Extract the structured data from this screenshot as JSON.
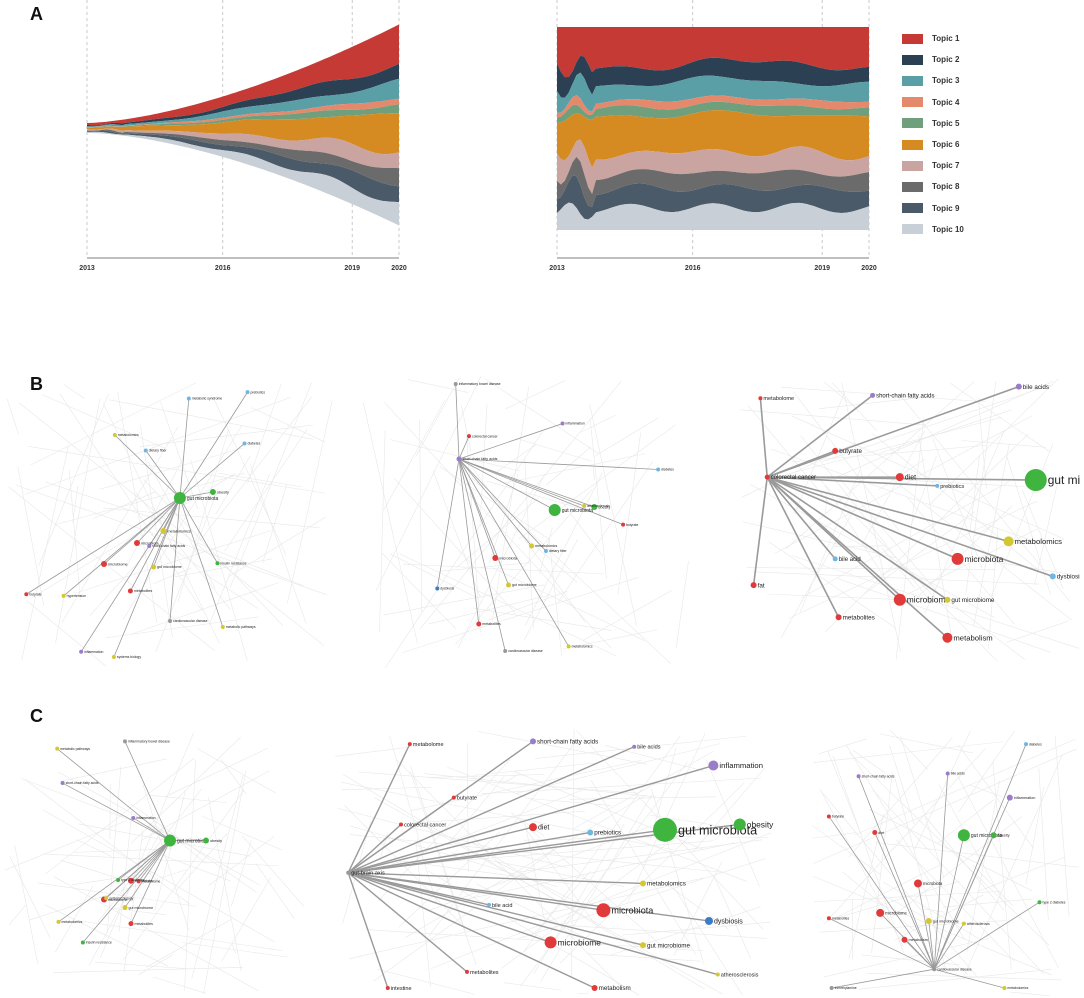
{
  "panels": {
    "a": "A",
    "b": "B",
    "c": "C"
  },
  "topics": [
    {
      "label": "Topic 1",
      "color": "#c63a35"
    },
    {
      "label": "Topic 2",
      "color": "#2b4153"
    },
    {
      "label": "Topic 3",
      "color": "#5a9fa6"
    },
    {
      "label": "Topic 4",
      "color": "#e4896b"
    },
    {
      "label": "Topic 5",
      "color": "#6f9f7c"
    },
    {
      "label": "Topic 6",
      "color": "#d68a22"
    },
    {
      "label": "Topic 7",
      "color": "#c9a4a0"
    },
    {
      "label": "Topic 8",
      "color": "#6b6b6b"
    },
    {
      "label": "Topic 9",
      "color": "#4a5a68"
    },
    {
      "label": "Topic 10",
      "color": "#c8cfd6"
    }
  ],
  "years": [
    "2013",
    "2016",
    "2019",
    "2020"
  ],
  "chart_data": [
    {
      "type": "area",
      "stacked": true,
      "offset": "silhouette",
      "x_ticks": [
        "2013",
        "2016",
        "2019",
        "2020"
      ],
      "legend_position": "right"
    },
    {
      "type": "area",
      "stacked": true,
      "normalized": true,
      "x_ticks": [
        "2013",
        "2016",
        "2019",
        "2020"
      ],
      "legend_position": "right"
    }
  ],
  "networks": {
    "b1": [
      {
        "label": "gut microbiota",
        "color": "#3fb43f",
        "r": 6
      },
      {
        "label": "microbiota",
        "color": "#e03a3a",
        "r": 3
      },
      {
        "label": "obesity",
        "color": "#3fb43f",
        "r": 3
      },
      {
        "label": "metabolomics",
        "color": "#d4c832",
        "r": 3
      },
      {
        "label": "microbiome",
        "color": "#e03a3a",
        "r": 3
      },
      {
        "label": "gut microbiome",
        "color": "#d4c832",
        "r": 2.5
      },
      {
        "label": "short-chain fatty acids",
        "color": "#9a7cc9",
        "r": 2
      },
      {
        "label": "metabolic syndrome",
        "color": "#6fb6e0",
        "r": 2
      },
      {
        "label": "inflammation",
        "color": "#9a7cc9",
        "r": 2
      },
      {
        "label": "metabolites",
        "color": "#e03a3a",
        "r": 2.5
      },
      {
        "label": "cardiovascular disease",
        "color": "#999999",
        "r": 2
      },
      {
        "label": "metabolomics",
        "color": "#d4c832",
        "r": 2
      },
      {
        "label": "insulin resistance",
        "color": "#3fb43f",
        "r": 2
      },
      {
        "label": "diabetes",
        "color": "#6fb6e0",
        "r": 2
      },
      {
        "label": "dietary fiber",
        "color": "#6fb6e0",
        "r": 2
      },
      {
        "label": "prebiotics",
        "color": "#6fb6e0",
        "r": 2
      },
      {
        "label": "butyrate",
        "color": "#e03a3a",
        "r": 2
      },
      {
        "label": "systems biology",
        "color": "#d4c832",
        "r": 2
      },
      {
        "label": "metabolic pathways",
        "color": "#d4c832",
        "r": 2
      },
      {
        "label": "hypertension",
        "color": "#d4c832",
        "r": 2
      }
    ],
    "b2": [
      {
        "label": "gut microbiota",
        "color": "#3fb43f",
        "r": 6
      },
      {
        "label": "short-chain fatty acids",
        "color": "#9a7cc9",
        "r": 2.5
      },
      {
        "label": "obesity",
        "color": "#3fb43f",
        "r": 3
      },
      {
        "label": "microbiota",
        "color": "#e03a3a",
        "r": 3
      },
      {
        "label": "gut microbiome",
        "color": "#d4c832",
        "r": 2.5
      },
      {
        "label": "metabolomics",
        "color": "#d4c832",
        "r": 2.5
      },
      {
        "label": "metabolites",
        "color": "#e03a3a",
        "r": 2.5
      },
      {
        "label": "inflammatory bowel disease",
        "color": "#999999",
        "r": 2
      },
      {
        "label": "inflammation",
        "color": "#9a7cc9",
        "r": 2
      },
      {
        "label": "dietary fiber",
        "color": "#6fb6e0",
        "r": 2
      },
      {
        "label": "diabetes",
        "color": "#6fb6e0",
        "r": 2
      },
      {
        "label": "butyrate",
        "color": "#e03a3a",
        "r": 2
      },
      {
        "label": "cardiovascular disease",
        "color": "#999999",
        "r": 2
      },
      {
        "label": "dysbiosis",
        "color": "#3a7cc9",
        "r": 2
      },
      {
        "label": "atherosclerosis",
        "color": "#d4c832",
        "r": 2
      },
      {
        "label": "colorectal cancer",
        "color": "#e03a3a",
        "r": 2
      },
      {
        "label": "metabolomics",
        "color": "#d4c832",
        "r": 2
      }
    ],
    "b3": [
      {
        "label": "gut microbiota",
        "color": "#3fb43f",
        "r": 11
      },
      {
        "label": "colorectal cancer",
        "color": "#e03a3a",
        "r": 2.5
      },
      {
        "label": "short-chain fatty acids",
        "color": "#9a7cc9",
        "r": 2.5
      },
      {
        "label": "bile acids",
        "color": "#9a7cc9",
        "r": 3
      },
      {
        "label": "metabolome",
        "color": "#e03a3a",
        "r": 2
      },
      {
        "label": "butyrate",
        "color": "#e03a3a",
        "r": 3
      },
      {
        "label": "diet",
        "color": "#e03a3a",
        "r": 4
      },
      {
        "label": "microbiota",
        "color": "#e03a3a",
        "r": 6
      },
      {
        "label": "microbiome",
        "color": "#e03a3a",
        "r": 6
      },
      {
        "label": "metabolomics",
        "color": "#d4c832",
        "r": 5
      },
      {
        "label": "metabolites",
        "color": "#e03a3a",
        "r": 3
      },
      {
        "label": "metabolism",
        "color": "#e03a3a",
        "r": 5
      },
      {
        "label": "bile acid",
        "color": "#6fb6e0",
        "r": 2.5
      },
      {
        "label": "gut microbiome",
        "color": "#d4c832",
        "r": 3
      },
      {
        "label": "dysbiosis",
        "color": "#6fb6e0",
        "r": 3
      },
      {
        "label": "prebiotics",
        "color": "#6fb6e0",
        "r": 2
      },
      {
        "label": "fat",
        "color": "#e03a3a",
        "r": 3
      }
    ],
    "c1": [
      {
        "label": "gut microbiota",
        "color": "#3fb43f",
        "r": 6
      },
      {
        "label": "obesity",
        "color": "#3fb43f",
        "r": 3
      },
      {
        "label": "microbiota",
        "color": "#e03a3a",
        "r": 3
      },
      {
        "label": "microbiome",
        "color": "#e03a3a",
        "r": 3
      },
      {
        "label": "gut microbiome",
        "color": "#d4c832",
        "r": 2.5
      },
      {
        "label": "metabolites",
        "color": "#e03a3a",
        "r": 2.5
      },
      {
        "label": "inflammation",
        "color": "#9a7cc9",
        "r": 2
      },
      {
        "label": "short-chain fatty acids",
        "color": "#9a7cc9",
        "r": 2
      },
      {
        "label": "inflammatory bowel disease",
        "color": "#999999",
        "r": 2
      },
      {
        "label": "metabolome",
        "color": "#e03a3a",
        "r": 2
      },
      {
        "label": "systems biology",
        "color": "#d4c832",
        "r": 2
      },
      {
        "label": "metabolic pathways",
        "color": "#d4c832",
        "r": 2
      },
      {
        "label": "insulin resistance",
        "color": "#3fb43f",
        "r": 2
      },
      {
        "label": "type 2 diabetes",
        "color": "#3fb43f",
        "r": 2
      },
      {
        "label": "metabolomics",
        "color": "#d4c832",
        "r": 2
      }
    ],
    "c2": [
      {
        "label": "gut microbiota",
        "color": "#3fb43f",
        "r": 12
      },
      {
        "label": "gut-brain axis",
        "color": "#999999",
        "r": 2
      },
      {
        "label": "short-chain fatty acids",
        "color": "#9a7cc9",
        "r": 3
      },
      {
        "label": "inflammation",
        "color": "#9a7cc9",
        "r": 5
      },
      {
        "label": "obesity",
        "color": "#3fb43f",
        "r": 6
      },
      {
        "label": "diet",
        "color": "#e03a3a",
        "r": 4
      },
      {
        "label": "prebiotics",
        "color": "#6fb6e0",
        "r": 3
      },
      {
        "label": "microbiota",
        "color": "#e03a3a",
        "r": 7
      },
      {
        "label": "dysbiosis",
        "color": "#3a7cc9",
        "r": 4
      },
      {
        "label": "microbiome",
        "color": "#e03a3a",
        "r": 6
      },
      {
        "label": "intestine",
        "color": "#e03a3a",
        "r": 2
      },
      {
        "label": "metabolome",
        "color": "#e03a3a",
        "r": 2
      },
      {
        "label": "bile acids",
        "color": "#9a7cc9",
        "r": 2
      },
      {
        "label": "butyrate",
        "color": "#e03a3a",
        "r": 2
      },
      {
        "label": "colorectal cancer",
        "color": "#e03a3a",
        "r": 2
      },
      {
        "label": "metabolomics",
        "color": "#d4c832",
        "r": 3
      },
      {
        "label": "bile acid",
        "color": "#6fb6e0",
        "r": 2
      },
      {
        "label": "gut microbiome",
        "color": "#d4c832",
        "r": 3
      },
      {
        "label": "metabolism",
        "color": "#e03a3a",
        "r": 3
      },
      {
        "label": "metabolites",
        "color": "#e03a3a",
        "r": 2
      },
      {
        "label": "atherosclerosis",
        "color": "#d4c832",
        "r": 2
      }
    ],
    "c3": [
      {
        "label": "gut microbiota",
        "color": "#3fb43f",
        "r": 6
      },
      {
        "label": "cardiovascular disease",
        "color": "#999999",
        "r": 2
      },
      {
        "label": "diabetes",
        "color": "#6fb6e0",
        "r": 2
      },
      {
        "label": "short-chain fatty acids",
        "color": "#9a7cc9",
        "r": 2
      },
      {
        "label": "bile acids",
        "color": "#9a7cc9",
        "r": 2
      },
      {
        "label": "inflammation",
        "color": "#9a7cc9",
        "r": 3
      },
      {
        "label": "butyrate",
        "color": "#e03a3a",
        "r": 2
      },
      {
        "label": "diet",
        "color": "#e03a3a",
        "r": 2.5
      },
      {
        "label": "microbiota",
        "color": "#e03a3a",
        "r": 4
      },
      {
        "label": "microbiome",
        "color": "#e03a3a",
        "r": 4
      },
      {
        "label": "gut microbiome",
        "color": "#d4c832",
        "r": 3
      },
      {
        "label": "metabolism",
        "color": "#e03a3a",
        "r": 3
      },
      {
        "label": "metabolites",
        "color": "#e03a3a",
        "r": 2
      },
      {
        "label": "atherosclerosis",
        "color": "#d4c832",
        "r": 2
      },
      {
        "label": "type 2 diabetes",
        "color": "#3fb43f",
        "r": 2
      },
      {
        "label": "metabolomics",
        "color": "#d4c832",
        "r": 2
      },
      {
        "label": "obesity",
        "color": "#3fb43f",
        "r": 3
      },
      {
        "label": "trimethylamine",
        "color": "#999999",
        "r": 2
      }
    ]
  }
}
